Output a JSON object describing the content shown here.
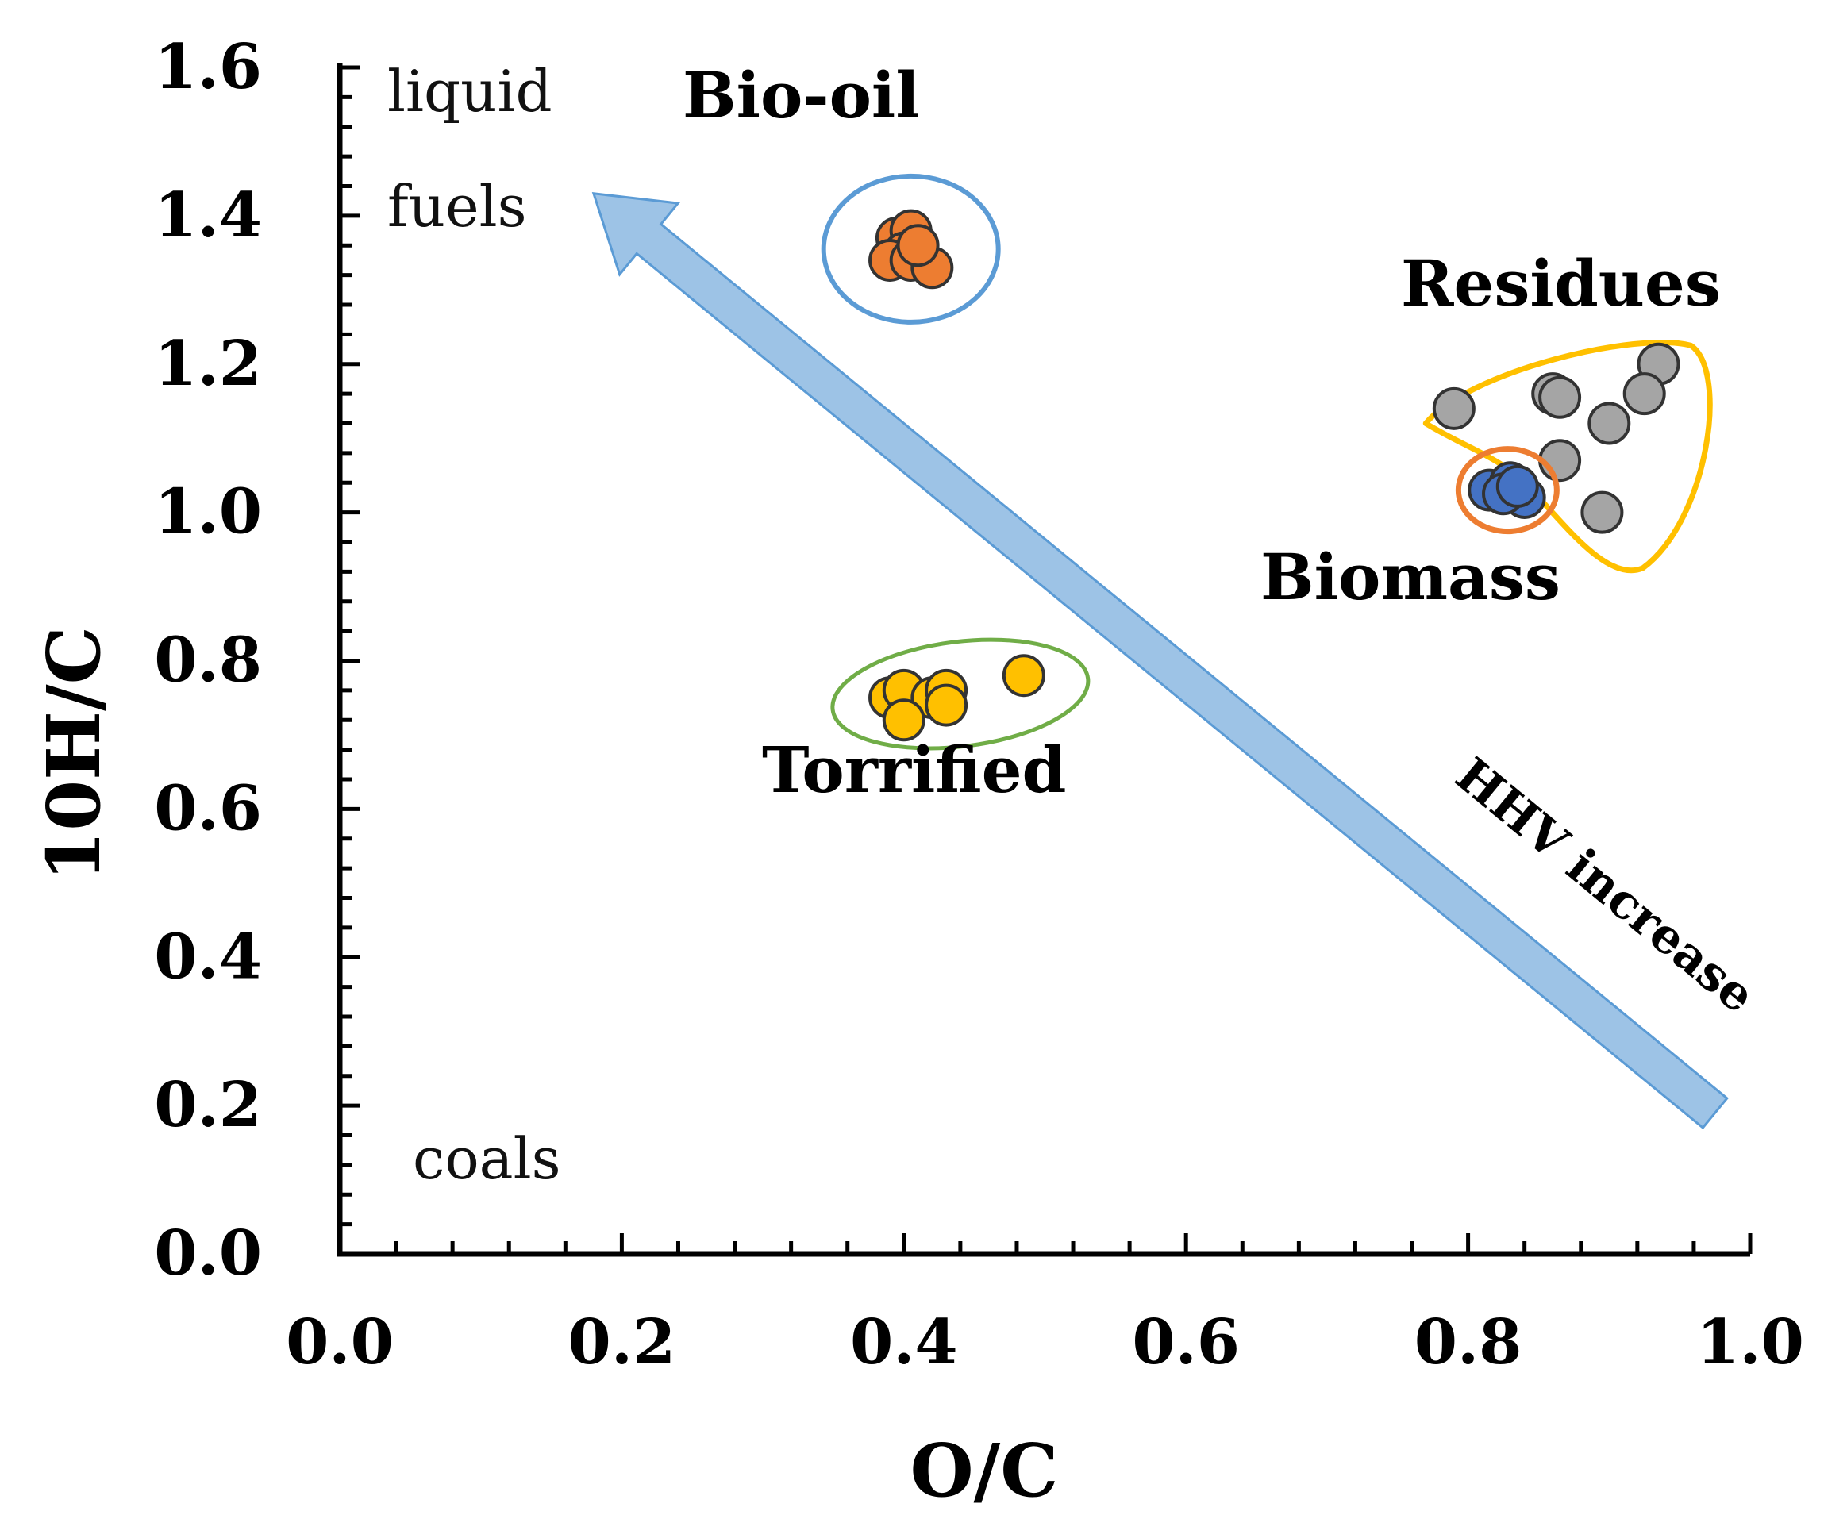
{
  "chart_data": {
    "type": "scatter",
    "title": "",
    "xlabel": "O/C",
    "ylabel": "10H/C",
    "xlim": [
      0.0,
      1.0
    ],
    "ylim": [
      0.0,
      1.6
    ],
    "xticks": [
      "0.0",
      "0.2",
      "0.4",
      "0.6",
      "0.8",
      "1.0"
    ],
    "xtick_values": [
      0.0,
      0.2,
      0.4,
      0.6,
      0.8,
      1.0
    ],
    "yticks": [
      "0.0",
      "0.2",
      "0.4",
      "0.6",
      "0.8",
      "1.0",
      "1.2",
      "1.4",
      "1.6"
    ],
    "ytick_values": [
      0.0,
      0.2,
      0.4,
      0.6,
      0.8,
      1.0,
      1.2,
      1.4,
      1.6
    ],
    "grid": false,
    "series": [
      {
        "name": "Bio-oil",
        "color": "#ED7D31",
        "enclosure_color": "#5B9BD5",
        "points": [
          [
            0.395,
            1.37
          ],
          [
            0.405,
            1.38
          ],
          [
            0.4,
            1.35
          ],
          [
            0.39,
            1.34
          ],
          [
            0.405,
            1.34
          ],
          [
            0.42,
            1.33
          ],
          [
            0.41,
            1.36
          ]
        ]
      },
      {
        "name": "Torrified",
        "color": "#FFC000",
        "enclosure_color": "#70AD47",
        "points": [
          [
            0.39,
            0.75
          ],
          [
            0.4,
            0.76
          ],
          [
            0.42,
            0.75
          ],
          [
            0.43,
            0.76
          ],
          [
            0.43,
            0.74
          ],
          [
            0.4,
            0.72
          ],
          [
            0.485,
            0.78
          ]
        ]
      },
      {
        "name": "Residues",
        "color": "#A5A5A5",
        "enclosure_color": "#FFC000",
        "points": [
          [
            0.79,
            1.14
          ],
          [
            0.86,
            1.16
          ],
          [
            0.865,
            1.155
          ],
          [
            0.935,
            1.2
          ],
          [
            0.925,
            1.16
          ],
          [
            0.9,
            1.12
          ],
          [
            0.865,
            1.07
          ],
          [
            0.895,
            1.0
          ]
        ]
      },
      {
        "name": "Biomass",
        "color": "#4472C4",
        "enclosure_color": "#ED7D31",
        "points": [
          [
            0.815,
            1.03
          ],
          [
            0.83,
            1.04
          ],
          [
            0.84,
            1.02
          ],
          [
            0.825,
            1.025
          ],
          [
            0.835,
            1.035
          ]
        ]
      }
    ],
    "annotations": {
      "liquid": "liquid",
      "fuels": "fuels",
      "coals": "coals",
      "arrow": "HHV increase",
      "arrow_color": "#9DC3E6",
      "arrow_edge": "#5B9BD5"
    }
  }
}
